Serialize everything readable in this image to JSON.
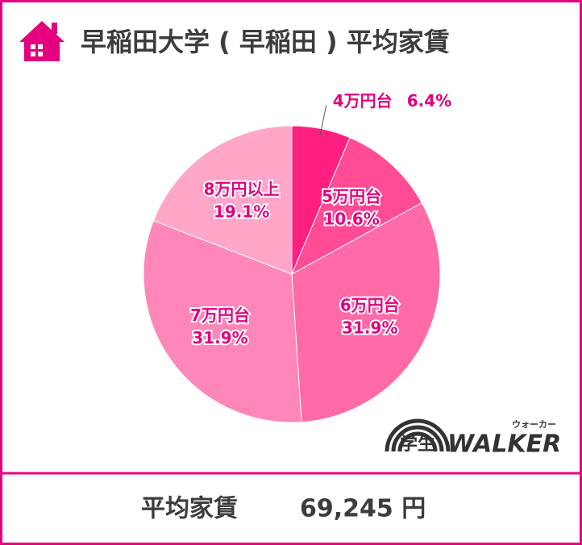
{
  "chart_data": {
    "type": "pie",
    "title": "早稲田大学 ( 早稲田 ) 平均家賃",
    "categories": [
      "4万円台",
      "5万円台",
      "6万円台",
      "7万円台",
      "8万円以上"
    ],
    "values": [
      6.4,
      10.6,
      31.9,
      31.9,
      19.1
    ],
    "value_labels": [
      "6.4%",
      "10.6%",
      "31.9%",
      "31.9%",
      "19.1%"
    ],
    "colors": [
      "#ff1f80",
      "#ff4c95",
      "#ff6aa7",
      "#ff86b8",
      "#ffa6c9"
    ]
  },
  "summary": {
    "label": "平均家賃",
    "value": "69,245 円"
  },
  "logo": {
    "prefix": "学生",
    "name": "WALKER",
    "reading": "ウォーカー"
  }
}
